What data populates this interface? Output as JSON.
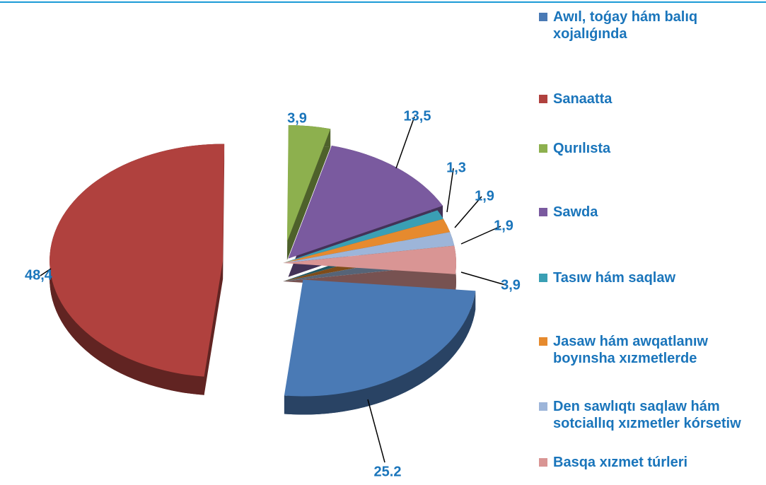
{
  "chart_data": {
    "type": "pie",
    "categories": [
      "Awıl, toǵay hám balıq xojalıǵında",
      "Sanaatta",
      "Qurılısta",
      "Sawda",
      "Tasıw hám saqlaw",
      "Jasaw hám awqatlanıw boyınsha xızmetlerde",
      "Den sawlıqtı saqlaw hám sotciallıq xızmetler kórsetiw",
      "Basqa xızmet túrleri"
    ],
    "values": [
      25.2,
      48.4,
      3.9,
      13.5,
      1.3,
      1.9,
      1.9,
      3.9
    ],
    "value_labels": [
      "25.2",
      "48,4",
      "3,9",
      "13,5",
      "1,3",
      "1,9",
      "1,9",
      "3,9"
    ],
    "colors": [
      "#4a7ab5",
      "#b0413e",
      "#8db04e",
      "#7a5a9f",
      "#3a9fb4",
      "#e68a2e",
      "#9db5d9",
      "#d99594"
    ],
    "legend": "right"
  }
}
